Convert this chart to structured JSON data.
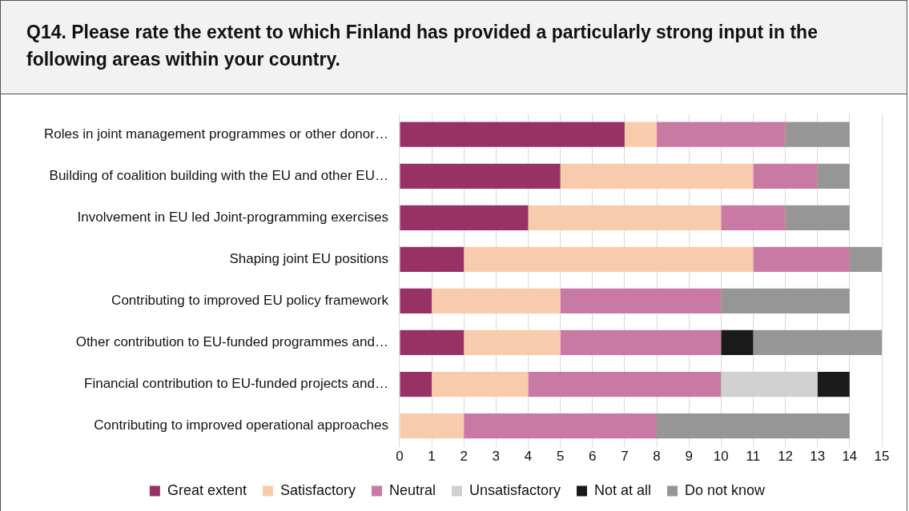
{
  "chart_data": {
    "type": "bar",
    "orientation": "horizontal",
    "stacked": true,
    "title": "Q14. Please rate the extent to which Finland has provided a particularly strong input in the following areas within your country.",
    "categories": [
      "Roles in joint management programmes or other donor…",
      "Building of coalition building with the EU and other EU…",
      "Involvement in EU led Joint-programming exercises",
      "Shaping joint EU positions",
      "Contributing to improved EU policy framework",
      "Other contribution to EU-funded programmes and…",
      "Financial contribution to EU-funded projects and…",
      "Contributing to improved operational approaches"
    ],
    "series": [
      {
        "name": "Great extent",
        "color": "#993264",
        "values": [
          7,
          5,
          4,
          2,
          1,
          2,
          1,
          0
        ]
      },
      {
        "name": "Satisfactory",
        "color": "#f8cbad",
        "values": [
          1,
          6,
          6,
          9,
          4,
          3,
          3,
          2
        ]
      },
      {
        "name": "Neutral",
        "color": "#c97aa4",
        "values": [
          4,
          2,
          2,
          3,
          5,
          5,
          6,
          6
        ]
      },
      {
        "name": "Unsatisfactory",
        "color": "#d0d0d0",
        "values": [
          0,
          0,
          0,
          0,
          0,
          0,
          3,
          0
        ]
      },
      {
        "name": "Not at all",
        "color": "#1a1a1a",
        "values": [
          0,
          0,
          0,
          0,
          0,
          1,
          1,
          0
        ]
      },
      {
        "name": "Do not know",
        "color": "#969696",
        "values": [
          2,
          1,
          2,
          1,
          4,
          4,
          0,
          6
        ]
      }
    ],
    "xlim": [
      0,
      15
    ],
    "xticks": [
      0,
      1,
      2,
      3,
      4,
      5,
      6,
      7,
      8,
      9,
      10,
      11,
      12,
      13,
      14,
      15
    ],
    "grid": "x",
    "legend": "bottom"
  }
}
